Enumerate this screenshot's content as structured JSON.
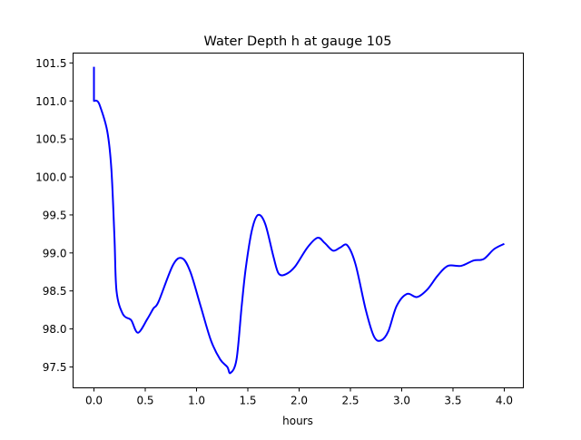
{
  "chart_data": {
    "type": "line",
    "title": "Water Depth h at gauge 105",
    "xlabel": "hours",
    "ylabel": "",
    "xlim": [
      -0.2035,
      4.186
    ],
    "ylim": [
      97.225,
      101.63
    ],
    "xticks": [
      0.0,
      0.5,
      1.0,
      1.5,
      2.0,
      2.5,
      3.0,
      3.5,
      4.0
    ],
    "xtick_labels": [
      "0.0",
      "0.5",
      "1.0",
      "1.5",
      "2.0",
      "2.5",
      "3.0",
      "3.5",
      "4.0"
    ],
    "yticks": [
      97.5,
      98.0,
      98.5,
      99.0,
      99.5,
      100.0,
      100.5,
      101.0,
      101.5
    ],
    "ytick_labels": [
      "97.5",
      "98.0",
      "98.5",
      "99.0",
      "99.5",
      "100.0",
      "100.5",
      "101.0",
      "101.5"
    ],
    "grid": false,
    "series": [
      {
        "name": "h",
        "color": "#0000ff",
        "x": [
          0,
          0,
          0.03,
          0.06,
          0.13,
          0.17,
          0.2,
          0.22,
          0.28,
          0.35,
          0.37,
          0.43,
          0.52,
          0.58,
          0.63,
          0.77,
          0.86,
          0.94,
          1.04,
          1.14,
          1.23,
          1.3,
          1.33,
          1.39,
          1.44,
          1.48,
          1.54,
          1.6,
          1.67,
          1.75,
          1.8,
          1.87,
          1.96,
          2.08,
          2.18,
          2.25,
          2.33,
          2.4,
          2.47,
          2.55,
          2.65,
          2.73,
          2.8,
          2.87,
          2.95,
          3.05,
          3.15,
          3.25,
          3.35,
          3.45,
          3.58,
          3.7,
          3.8,
          3.9,
          4.0
        ],
        "y": [
          101.45,
          101.0,
          101.0,
          100.93,
          100.6,
          100.1,
          99.2,
          98.5,
          98.2,
          98.13,
          98.1,
          97.95,
          98.13,
          98.27,
          98.36,
          98.84,
          98.93,
          98.75,
          98.3,
          97.85,
          97.6,
          97.5,
          97.42,
          97.6,
          98.3,
          98.8,
          99.3,
          99.5,
          99.38,
          98.95,
          98.73,
          98.72,
          98.82,
          99.07,
          99.2,
          99.13,
          99.03,
          99.07,
          99.1,
          98.85,
          98.25,
          97.9,
          97.85,
          97.97,
          98.3,
          98.46,
          98.42,
          98.52,
          98.7,
          98.83,
          98.83,
          98.9,
          98.92,
          99.05,
          99.12
        ]
      }
    ]
  }
}
